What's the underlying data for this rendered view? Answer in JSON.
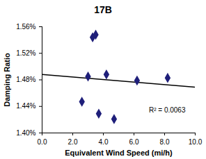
{
  "chart_data": {
    "type": "scatter",
    "title": "17B",
    "x_label": "Equivalent Wind Speed (mi/h)",
    "y_label": "Damping Ratio",
    "x": [
      2.6,
      3.0,
      3.3,
      3.5,
      3.7,
      4.2,
      4.7,
      6.2,
      8.2
    ],
    "values": [
      1.447,
      1.485,
      1.544,
      1.548,
      1.429,
      1.488,
      1.421,
      1.479,
      1.483
    ],
    "color": "#1f1f7a",
    "marker": "diamond",
    "trendline": {
      "x": [
        0,
        10
      ],
      "values": [
        1.488,
        1.469
      ],
      "color": "#000000"
    },
    "annotation": "R² = 0.0063",
    "xlim": [
      0,
      10
    ],
    "xticks": [
      {
        "value": 0,
        "label": "0.0"
      },
      {
        "value": 2,
        "label": "2.0"
      },
      {
        "value": 4,
        "label": "4.0"
      },
      {
        "value": 6,
        "label": "6.0"
      },
      {
        "value": 8,
        "label": "8.0"
      },
      {
        "value": 10,
        "label": "10.0"
      }
    ],
    "ylim": [
      1.4,
      1.56
    ],
    "yticks": [
      {
        "value": 1.4,
        "label": "1.40%"
      },
      {
        "value": 1.44,
        "label": "1.44%"
      },
      {
        "value": 1.48,
        "label": "1.48%"
      },
      {
        "value": 1.52,
        "label": "1.52%"
      },
      {
        "value": 1.56,
        "label": "1.56%"
      }
    ],
    "grid": false
  }
}
